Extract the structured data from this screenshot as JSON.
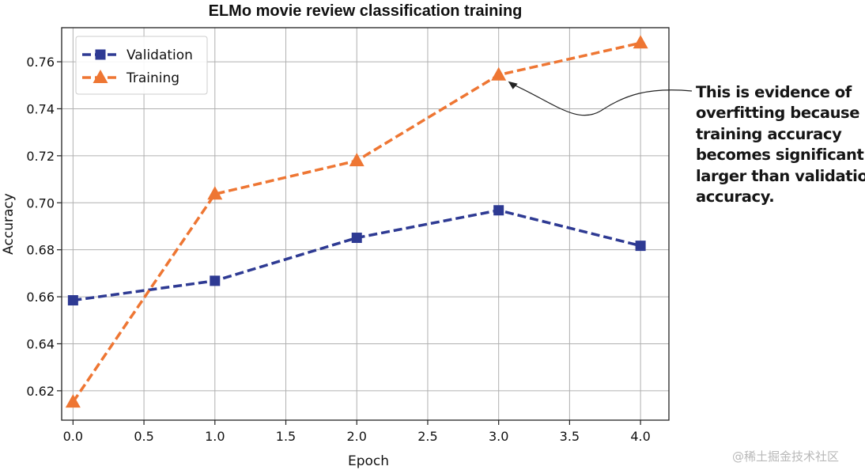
{
  "chart_data": {
    "type": "line",
    "title": "ELMo movie review classification training",
    "xlabel": "Epoch",
    "ylabel": "Accuracy",
    "xlim": [
      -0.08,
      4.2
    ],
    "ylim": [
      0.6075,
      0.7745
    ],
    "x": [
      0.0,
      1.0,
      2.0,
      3.0,
      4.0
    ],
    "xticks": [
      0.0,
      0.5,
      1.0,
      1.5,
      2.0,
      2.5,
      3.0,
      3.5,
      4.0
    ],
    "xtick_labels": [
      "0.0",
      "0.5",
      "1.0",
      "1.5",
      "2.0",
      "2.5",
      "3.0",
      "3.5",
      "4.0"
    ],
    "yticks": [
      0.62,
      0.64,
      0.66,
      0.68,
      0.7,
      0.72,
      0.74,
      0.76
    ],
    "ytick_labels": [
      "0.62",
      "0.64",
      "0.66",
      "0.68",
      "0.70",
      "0.72",
      "0.74",
      "0.76"
    ],
    "grid": true,
    "legend_position": "top-left",
    "series": [
      {
        "name": "Validation",
        "color": "#2e3a93",
        "marker": "square",
        "linestyle": "dashed",
        "values": [
          0.6585,
          0.6668,
          0.6851,
          0.6968,
          0.6817
        ]
      },
      {
        "name": "Training",
        "color": "#ee7633",
        "marker": "triangle",
        "linestyle": "dashed",
        "values": [
          0.6152,
          0.7037,
          0.7179,
          0.7544,
          0.768
        ]
      }
    ],
    "annotation": {
      "lines": [
        "This is evidence of",
        "overfitting because",
        "training accuracy",
        "becomes significantly",
        "larger than validation",
        "accuracy."
      ],
      "points_to": {
        "x": 3.0,
        "y": 0.7544
      }
    }
  },
  "watermark": "@稀土掘金技术社区"
}
